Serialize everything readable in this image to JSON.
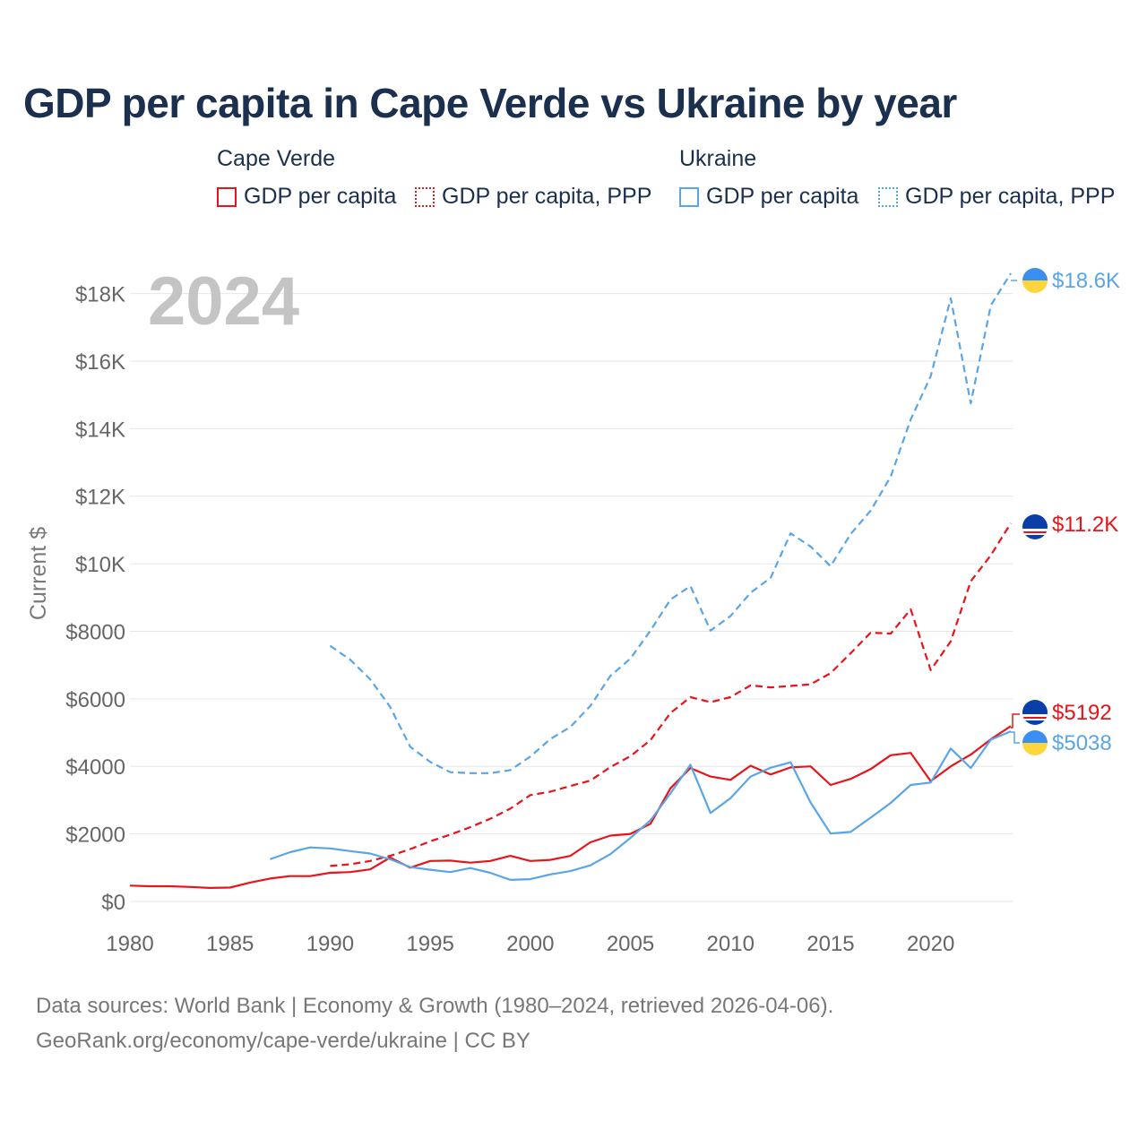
{
  "title": "GDP per capita in Cape Verde vs Ukraine by year",
  "year_label": "2024",
  "legend": {
    "groups": [
      {
        "name": "Cape Verde",
        "items": [
          {
            "label": "GDP per capita",
            "color": "#e8141b",
            "style": "solid"
          },
          {
            "label": "GDP per capita, PPP",
            "color": "#e8141b",
            "style": "dotted"
          }
        ]
      },
      {
        "name": "Ukraine",
        "items": [
          {
            "label": "GDP per capita",
            "color": "#5aa5e6",
            "style": "solid"
          },
          {
            "label": "GDP per capita, PPP",
            "color": "#5aa5e6",
            "style": "dotted"
          }
        ]
      }
    ]
  },
  "end_labels": {
    "ukraine_ppp": "$18.6K",
    "cape_verde_ppp": "$11.2K",
    "cape_verde_gdp": "$5192",
    "ukraine_gdp": "$5038"
  },
  "footer": {
    "line1": "Data sources: World Bank | Economy & Growth (1980–2024, retrieved 2026-04-06).",
    "line2": "GeoRank.org/economy/cape-verde/ukraine | CC BY"
  },
  "chart_data": {
    "type": "line",
    "title": "GDP per capita in Cape Verde vs Ukraine by year",
    "xlabel": "",
    "ylabel": "Current $",
    "xlim": [
      1980,
      2024
    ],
    "ylim": [
      0,
      18600
    ],
    "x_ticks": [
      1980,
      1985,
      1990,
      1995,
      2000,
      2005,
      2010,
      2015,
      2020
    ],
    "x_tick_labels": [
      "1980",
      "1985",
      "1990",
      "1995",
      "2000",
      "2005",
      "2010",
      "2015",
      "2020"
    ],
    "y_ticks": [
      0,
      2000,
      4000,
      6000,
      8000,
      10000,
      12000,
      14000,
      16000,
      18000
    ],
    "y_tick_labels": [
      "$0",
      "$2000",
      "$4000",
      "$6000",
      "$8000",
      "$10K",
      "$12K",
      "$14K",
      "$16K",
      "$18K"
    ],
    "grid": true,
    "series": [
      {
        "name": "Cape Verde GDP per capita",
        "color": "#e8141b",
        "dash": "solid",
        "x": [
          1980,
          1981,
          1982,
          1983,
          1984,
          1985,
          1986,
          1987,
          1988,
          1989,
          1990,
          1991,
          1992,
          1993,
          1994,
          1995,
          1996,
          1997,
          1998,
          1999,
          2000,
          2001,
          2002,
          2003,
          2004,
          2005,
          2006,
          2007,
          2008,
          2009,
          2010,
          2011,
          2012,
          2013,
          2014,
          2015,
          2016,
          2017,
          2018,
          2019,
          2020,
          2021,
          2022,
          2023,
          2024
        ],
        "values": [
          470,
          450,
          450,
          430,
          400,
          410,
          560,
          680,
          750,
          750,
          850,
          870,
          950,
          1300,
          1000,
          1200,
          1210,
          1150,
          1200,
          1350,
          1200,
          1230,
          1350,
          1750,
          1950,
          2000,
          2300,
          3350,
          3950,
          3700,
          3600,
          4020,
          3760,
          3970,
          4000,
          3450,
          3630,
          3920,
          4330,
          4400,
          3560,
          4000,
          4350,
          4800,
          5192
        ]
      },
      {
        "name": "Cape Verde GDP per capita, PPP",
        "color": "#e8141b",
        "dash": "dashed",
        "x": [
          1990,
          1991,
          1992,
          1993,
          1994,
          1995,
          1996,
          1997,
          1998,
          1999,
          2000,
          2001,
          2002,
          2003,
          2004,
          2005,
          2006,
          2007,
          2008,
          2009,
          2010,
          2011,
          2012,
          2013,
          2014,
          2015,
          2016,
          2017,
          2018,
          2019,
          2020,
          2021,
          2022,
          2023,
          2024
        ],
        "values": [
          1050,
          1100,
          1200,
          1350,
          1550,
          1780,
          1980,
          2200,
          2450,
          2750,
          3150,
          3250,
          3420,
          3580,
          3980,
          4300,
          4780,
          5580,
          6050,
          5900,
          6050,
          6400,
          6340,
          6380,
          6430,
          6760,
          7350,
          7960,
          7930,
          8650,
          6850,
          7700,
          9480,
          10250,
          11200
        ]
      },
      {
        "name": "Ukraine GDP per capita",
        "color": "#5aa5e6",
        "dash": "solid",
        "x": [
          1987,
          1988,
          1989,
          1990,
          1991,
          1992,
          1993,
          1994,
          1995,
          1996,
          1997,
          1998,
          1999,
          2000,
          2001,
          2002,
          2003,
          2004,
          2005,
          2006,
          2007,
          2008,
          2009,
          2010,
          2011,
          2012,
          2013,
          2014,
          2015,
          2016,
          2017,
          2018,
          2019,
          2020,
          2021,
          2022,
          2023,
          2024
        ],
        "values": [
          1250,
          1460,
          1600,
          1570,
          1490,
          1420,
          1250,
          1020,
          940,
          870,
          990,
          850,
          640,
          660,
          800,
          900,
          1070,
          1400,
          1880,
          2400,
          3200,
          4050,
          2620,
          3060,
          3700,
          3960,
          4120,
          2930,
          2010,
          2060,
          2480,
          2920,
          3450,
          3520,
          4530,
          3950,
          4790,
          5038
        ]
      },
      {
        "name": "Ukraine GDP per capita, PPP",
        "color": "#5aa5e6",
        "dash": "dashed",
        "x": [
          1990,
          1991,
          1992,
          1993,
          1994,
          1995,
          1996,
          1997,
          1998,
          1999,
          2000,
          2001,
          2002,
          2003,
          2004,
          2005,
          2006,
          2007,
          2008,
          2009,
          2010,
          2011,
          2012,
          2013,
          2014,
          2015,
          2016,
          2017,
          2018,
          2019,
          2020,
          2021,
          2022,
          2023,
          2024
        ],
        "values": [
          7570,
          7160,
          6580,
          5760,
          4580,
          4130,
          3830,
          3800,
          3800,
          3890,
          4290,
          4810,
          5170,
          5790,
          6680,
          7190,
          8020,
          8940,
          9340,
          8020,
          8450,
          9140,
          9580,
          10900,
          10510,
          9930,
          10880,
          11570,
          12580,
          14270,
          15550,
          17860,
          14750,
          17650,
          18600
        ]
      }
    ]
  }
}
